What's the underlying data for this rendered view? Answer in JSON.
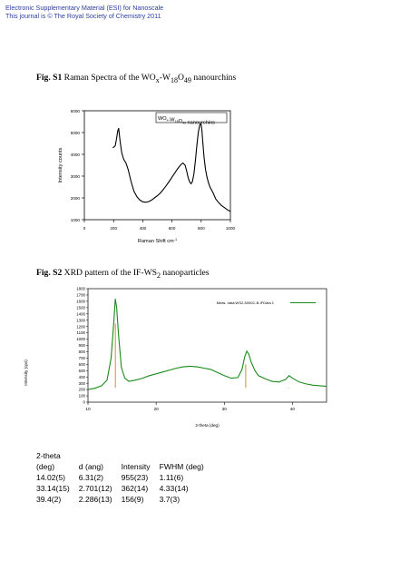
{
  "header": {
    "line1": "Electronic Supplementary Material (ESI) for Nanoscale",
    "line2": "This journal is © The Royal Society of Chemistry 2011"
  },
  "fig1": {
    "label": "Fig. S1",
    "text_pre": " Raman Spectra of the WO",
    "text_sub1": "x",
    "text_mid": "-W",
    "text_sub2": "18",
    "text_mid2": "O",
    "text_sub3": "49",
    "text_post": " nanourchins"
  },
  "fig2": {
    "label": "Fig. S2",
    "text_pre": " XRD pattern of the IF-WS",
    "text_sub": "2",
    "text_post": " nanoparticles"
  },
  "chart_data": [
    {
      "type": "line",
      "xlabel": "Raman Shift cm",
      "xlabel_sup": "-1",
      "ylabel": "Intensity counts",
      "xlim": [
        0,
        1000
      ],
      "ylim": [
        1000,
        6000
      ],
      "xticks": [
        "0",
        "200",
        "400",
        "600",
        "800",
        "1000"
      ],
      "yticks": [
        "1000",
        "2000",
        "3000",
        "4000",
        "5000",
        "6000"
      ],
      "legend": "WOx-W18O49 nanourchins",
      "legend_placement": "top-right",
      "color": "#000000",
      "series": [
        {
          "x": [
            195,
            205,
            212,
            220,
            228,
            235,
            245,
            255,
            265,
            275,
            285,
            300,
            320,
            340,
            360,
            380,
            400,
            420,
            440,
            460,
            480,
            500,
            520,
            540,
            560,
            580,
            600,
            620,
            640,
            660,
            675,
            690,
            700,
            710,
            720,
            730,
            740,
            750,
            760,
            770,
            780,
            790,
            795,
            800,
            805,
            810,
            820,
            830,
            840,
            850,
            860,
            880,
            900,
            920,
            940,
            960,
            980,
            1000
          ],
          "y": [
            4300,
            4350,
            4400,
            4700,
            5050,
            5200,
            4600,
            4100,
            3850,
            3700,
            3600,
            3300,
            2750,
            2300,
            2050,
            1900,
            1820,
            1800,
            1830,
            1900,
            2000,
            2100,
            2220,
            2380,
            2560,
            2750,
            2950,
            3150,
            3350,
            3520,
            3600,
            3500,
            3250,
            2950,
            2750,
            2650,
            2750,
            3100,
            3700,
            4400,
            5000,
            5350,
            5400,
            5350,
            5100,
            4650,
            3850,
            3300,
            2950,
            2700,
            2500,
            2250,
            1950,
            1780,
            1650,
            1550,
            1450,
            1380
          ]
        }
      ]
    },
    {
      "type": "line",
      "xlabel": "2-theta (deg)",
      "ylabel": "Intensity (cps)",
      "xlim": [
        10,
        45
      ],
      "ylim": [
        0,
        1800
      ],
      "xticks": [
        "10",
        "20",
        "30",
        "40"
      ],
      "yticks": [
        "0",
        "100",
        "200",
        "300",
        "400",
        "500",
        "600",
        "700",
        "800",
        "900",
        "1000",
        "1100",
        "1200",
        "1300",
        "1400",
        "1500",
        "1600",
        "1700",
        "1800"
      ],
      "legend": "Meas. data:WS2-5000C-B-IFData 1",
      "legend_placement": "top-right",
      "series_color": "#1a8a1a",
      "reference_color": "#d98c2b",
      "series": [
        {
          "x": [
            10,
            11,
            12,
            12.8,
            13.4,
            13.8,
            14.0,
            14.2,
            14.5,
            14.9,
            15.4,
            16,
            17,
            18,
            19,
            20,
            21,
            22,
            23,
            24,
            25,
            26,
            27,
            28,
            29,
            30,
            31,
            32,
            32.6,
            33.0,
            33.3,
            33.6,
            34.0,
            34.5,
            35,
            36,
            37,
            38,
            39,
            39.5,
            40,
            41,
            42,
            43,
            44,
            45
          ],
          "y": [
            200,
            220,
            260,
            350,
            700,
            1300,
            1640,
            1500,
            1050,
            550,
            380,
            330,
            350,
            380,
            420,
            450,
            480,
            510,
            540,
            560,
            570,
            560,
            540,
            520,
            470,
            420,
            380,
            390,
            520,
            720,
            810,
            760,
            620,
            500,
            420,
            370,
            330,
            320,
            360,
            420,
            380,
            320,
            290,
            270,
            260,
            250
          ]
        }
      ],
      "reference_peaks": [
        {
          "x": 14.02,
          "y": 1250
        },
        {
          "x": 33.14,
          "y": 600
        },
        {
          "x": 39.4,
          "y": 220
        }
      ]
    }
  ],
  "table": {
    "headers": [
      [
        "2-theta",
        "(deg)"
      ],
      [
        "",
        "d (ang)"
      ],
      [
        "",
        "Intensity"
      ],
      [
        "",
        "FWHM (deg)"
      ]
    ],
    "rows": [
      [
        "14.02(5)",
        "6.31(2)",
        "955(23)",
        "1.11(6)"
      ],
      [
        "33.14(15)",
        "2.701(12)",
        "362(14)",
        "4.33(14)"
      ],
      [
        "39.4(2)",
        "2.286(13)",
        "156(9)",
        "3.7(3)"
      ]
    ]
  }
}
